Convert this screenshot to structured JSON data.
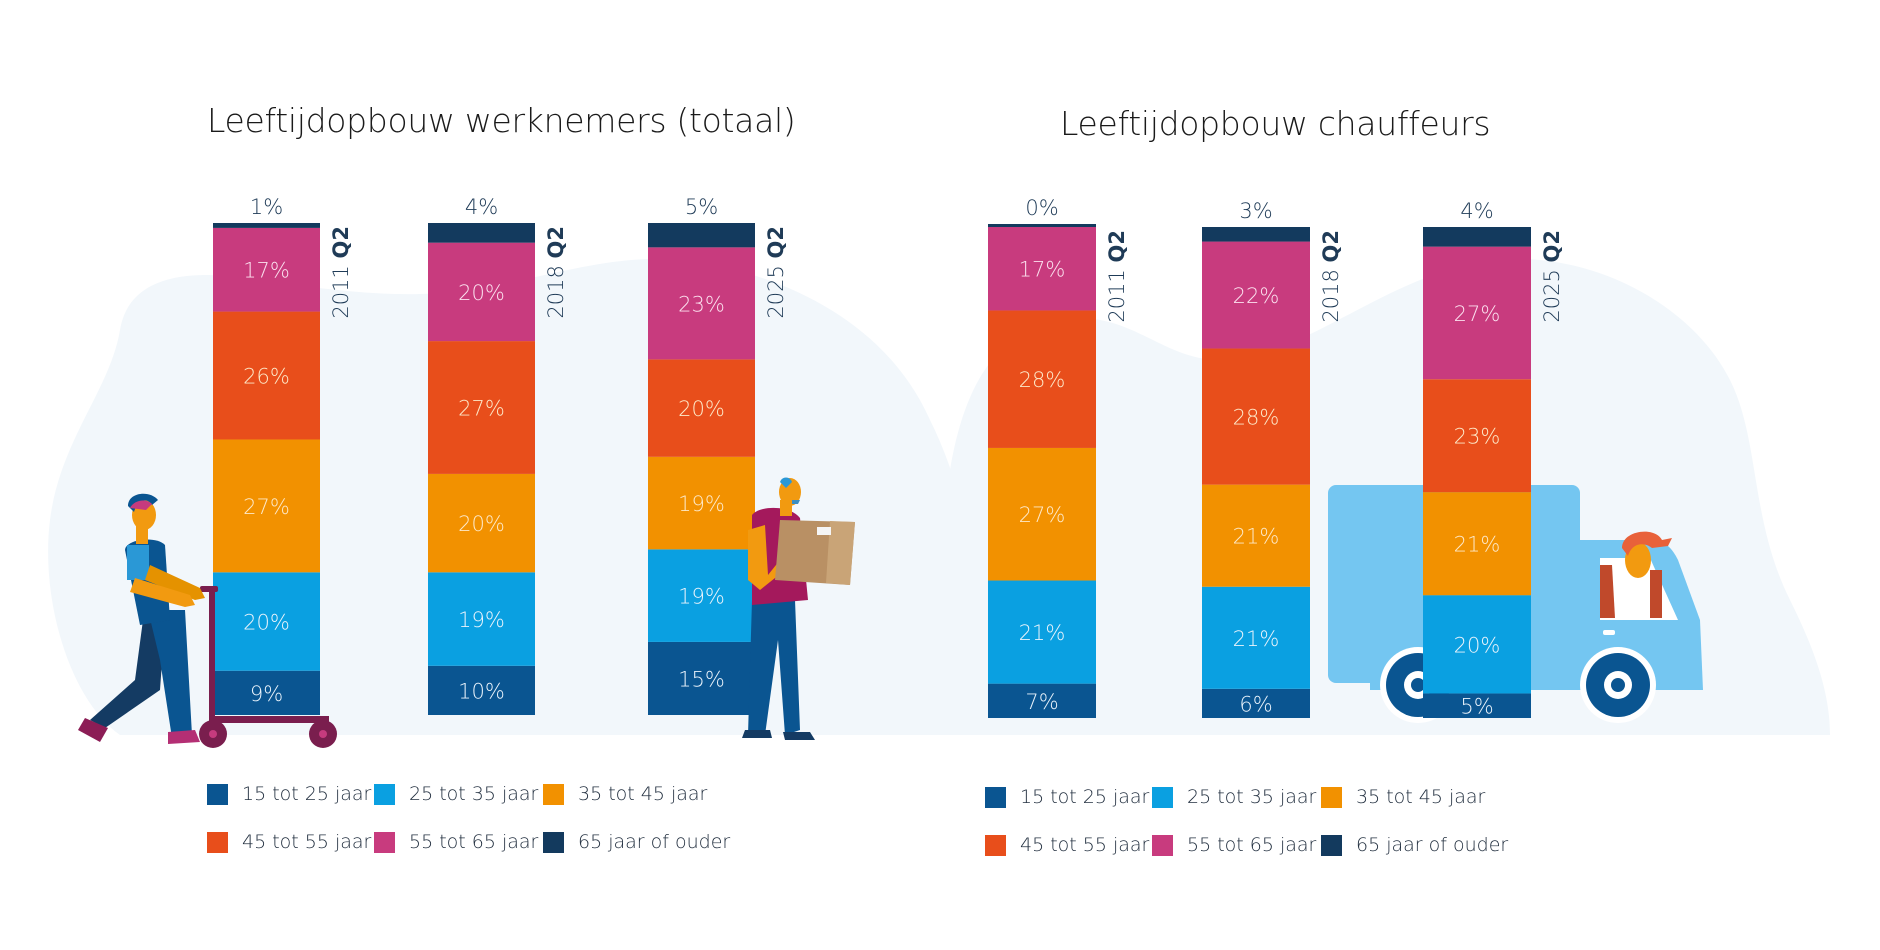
{
  "colors": {
    "15_25": "#0a5591",
    "25_35": "#0aa0e1",
    "35_45": "#f29100",
    "45_55": "#e84e1b",
    "55_65": "#c83b7e",
    "65plus": "#133a5e",
    "text_dark": "#1f3b57",
    "year_label": "#1f3b57",
    "blob": "#f2f7fb",
    "truck": "#74c6f1",
    "truck_wheel": "#0a5591"
  },
  "legend": [
    {
      "key": "15_25",
      "label": "15 tot 25 jaar"
    },
    {
      "key": "25_35",
      "label": "25 tot 35 jaar"
    },
    {
      "key": "35_45",
      "label": "35 tot 45 jaar"
    },
    {
      "key": "45_55",
      "label": "45 tot 55 jaar"
    },
    {
      "key": "55_65",
      "label": "55 tot 65 jaar"
    },
    {
      "key": "65plus",
      "label": "65 jaar of ouder"
    }
  ],
  "chart_data": [
    {
      "type": "bar",
      "stacked": true,
      "normalized_percent": true,
      "title": "Leeftijdopbouw werknemers (totaal)",
      "categories": [
        {
          "year": "2011",
          "quarter": "Q2"
        },
        {
          "year": "2018",
          "quarter": "Q2"
        },
        {
          "year": "2025",
          "quarter": "Q2"
        }
      ],
      "series": [
        {
          "key": "15_25",
          "name": "15 tot 25 jaar",
          "values": [
            9,
            10,
            15
          ]
        },
        {
          "key": "25_35",
          "name": "25 tot 35 jaar",
          "values": [
            20,
            19,
            19
          ]
        },
        {
          "key": "35_45",
          "name": "35 tot 45 jaar",
          "values": [
            27,
            20,
            19
          ]
        },
        {
          "key": "45_55",
          "name": "45 tot 55 jaar",
          "values": [
            26,
            27,
            20
          ]
        },
        {
          "key": "55_65",
          "name": "55 tot 65 jaar",
          "values": [
            17,
            20,
            23
          ]
        },
        {
          "key": "65plus",
          "name": "65 jaar of ouder",
          "values": [
            1,
            4,
            5
          ]
        }
      ],
      "value_suffix": "%",
      "ylim": [
        0,
        100
      ],
      "xlabel": "",
      "ylabel": "",
      "grid": false,
      "legend_position": "bottom"
    },
    {
      "type": "bar",
      "stacked": true,
      "normalized_percent": true,
      "title": "Leeftijdopbouw chauffeurs",
      "categories": [
        {
          "year": "2011",
          "quarter": "Q2"
        },
        {
          "year": "2018",
          "quarter": "Q2"
        },
        {
          "year": "2025",
          "quarter": "Q2"
        }
      ],
      "series": [
        {
          "key": "15_25",
          "name": "15 tot 25 jaar",
          "values": [
            7,
            6,
            5
          ]
        },
        {
          "key": "25_35",
          "name": "25 tot 35 jaar",
          "values": [
            21,
            21,
            20
          ]
        },
        {
          "key": "35_45",
          "name": "35 tot 45 jaar",
          "values": [
            27,
            21,
            21
          ]
        },
        {
          "key": "45_55",
          "name": "45 tot 55 jaar",
          "values": [
            28,
            28,
            23
          ]
        },
        {
          "key": "55_65",
          "name": "55 tot 65 jaar",
          "values": [
            17,
            22,
            27
          ]
        },
        {
          "key": "65plus",
          "name": "65 jaar of ouder",
          "values": [
            0,
            3,
            4
          ]
        }
      ],
      "value_suffix": "%",
      "ylim": [
        0,
        100
      ],
      "xlabel": "",
      "ylabel": "",
      "grid": false,
      "legend_position": "bottom"
    }
  ],
  "illustrations": [
    {
      "name": "worker-pushing-trolley",
      "chart": 0
    },
    {
      "name": "worker-carrying-box",
      "chart": 0
    },
    {
      "name": "delivery-truck-with-driver",
      "chart": 1
    }
  ]
}
